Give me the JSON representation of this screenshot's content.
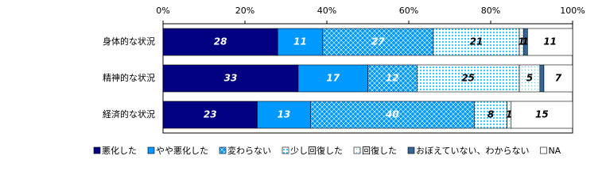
{
  "chart_data": {
    "type": "stacked-barh",
    "categories": [
      "身体的な状況",
      "精神的な状況",
      "経済的な状況"
    ],
    "xlim": [
      0,
      100
    ],
    "xticks": [
      {
        "value": 0,
        "label": "0%"
      },
      {
        "value": 20,
        "label": "20%"
      },
      {
        "value": 40,
        "label": "40%"
      },
      {
        "value": 60,
        "label": "60%"
      },
      {
        "value": 80,
        "label": "80%"
      },
      {
        "value": 100,
        "label": "100%"
      }
    ],
    "series": [
      {
        "name": "悪化した",
        "color": "#000080",
        "pattern": "solid",
        "label_color": "#ffffff",
        "values": [
          28,
          33,
          23
        ]
      },
      {
        "name": "やや悪化した",
        "color": "#0099ff",
        "pattern": "solid",
        "label_color": "#ffffff",
        "values": [
          11,
          17,
          13
        ]
      },
      {
        "name": "変わらない",
        "color": "#0099ff",
        "pattern": "crosshatch",
        "label_color": "#ffffff",
        "values": [
          27,
          12,
          40
        ]
      },
      {
        "name": "少し回復した",
        "color": "#33ccff",
        "pattern": "dots",
        "label_color": "#000000",
        "values": [
          21,
          25,
          8
        ]
      },
      {
        "name": "回復した",
        "color": "#33ccff",
        "pattern": "sparse",
        "label_color": "#000000",
        "values": [
          1,
          5,
          1
        ]
      },
      {
        "name": "おぼえていない、わからない",
        "color": "#336699",
        "pattern": "solid",
        "label_color": "#000000",
        "values": [
          1,
          1,
          0
        ],
        "value_labels": [
          "1",
          null,
          null
        ]
      },
      {
        "name": "NA",
        "color": "#ffffff",
        "pattern": "solid",
        "label_color": "#000000",
        "values": [
          11,
          7,
          15
        ]
      }
    ]
  }
}
